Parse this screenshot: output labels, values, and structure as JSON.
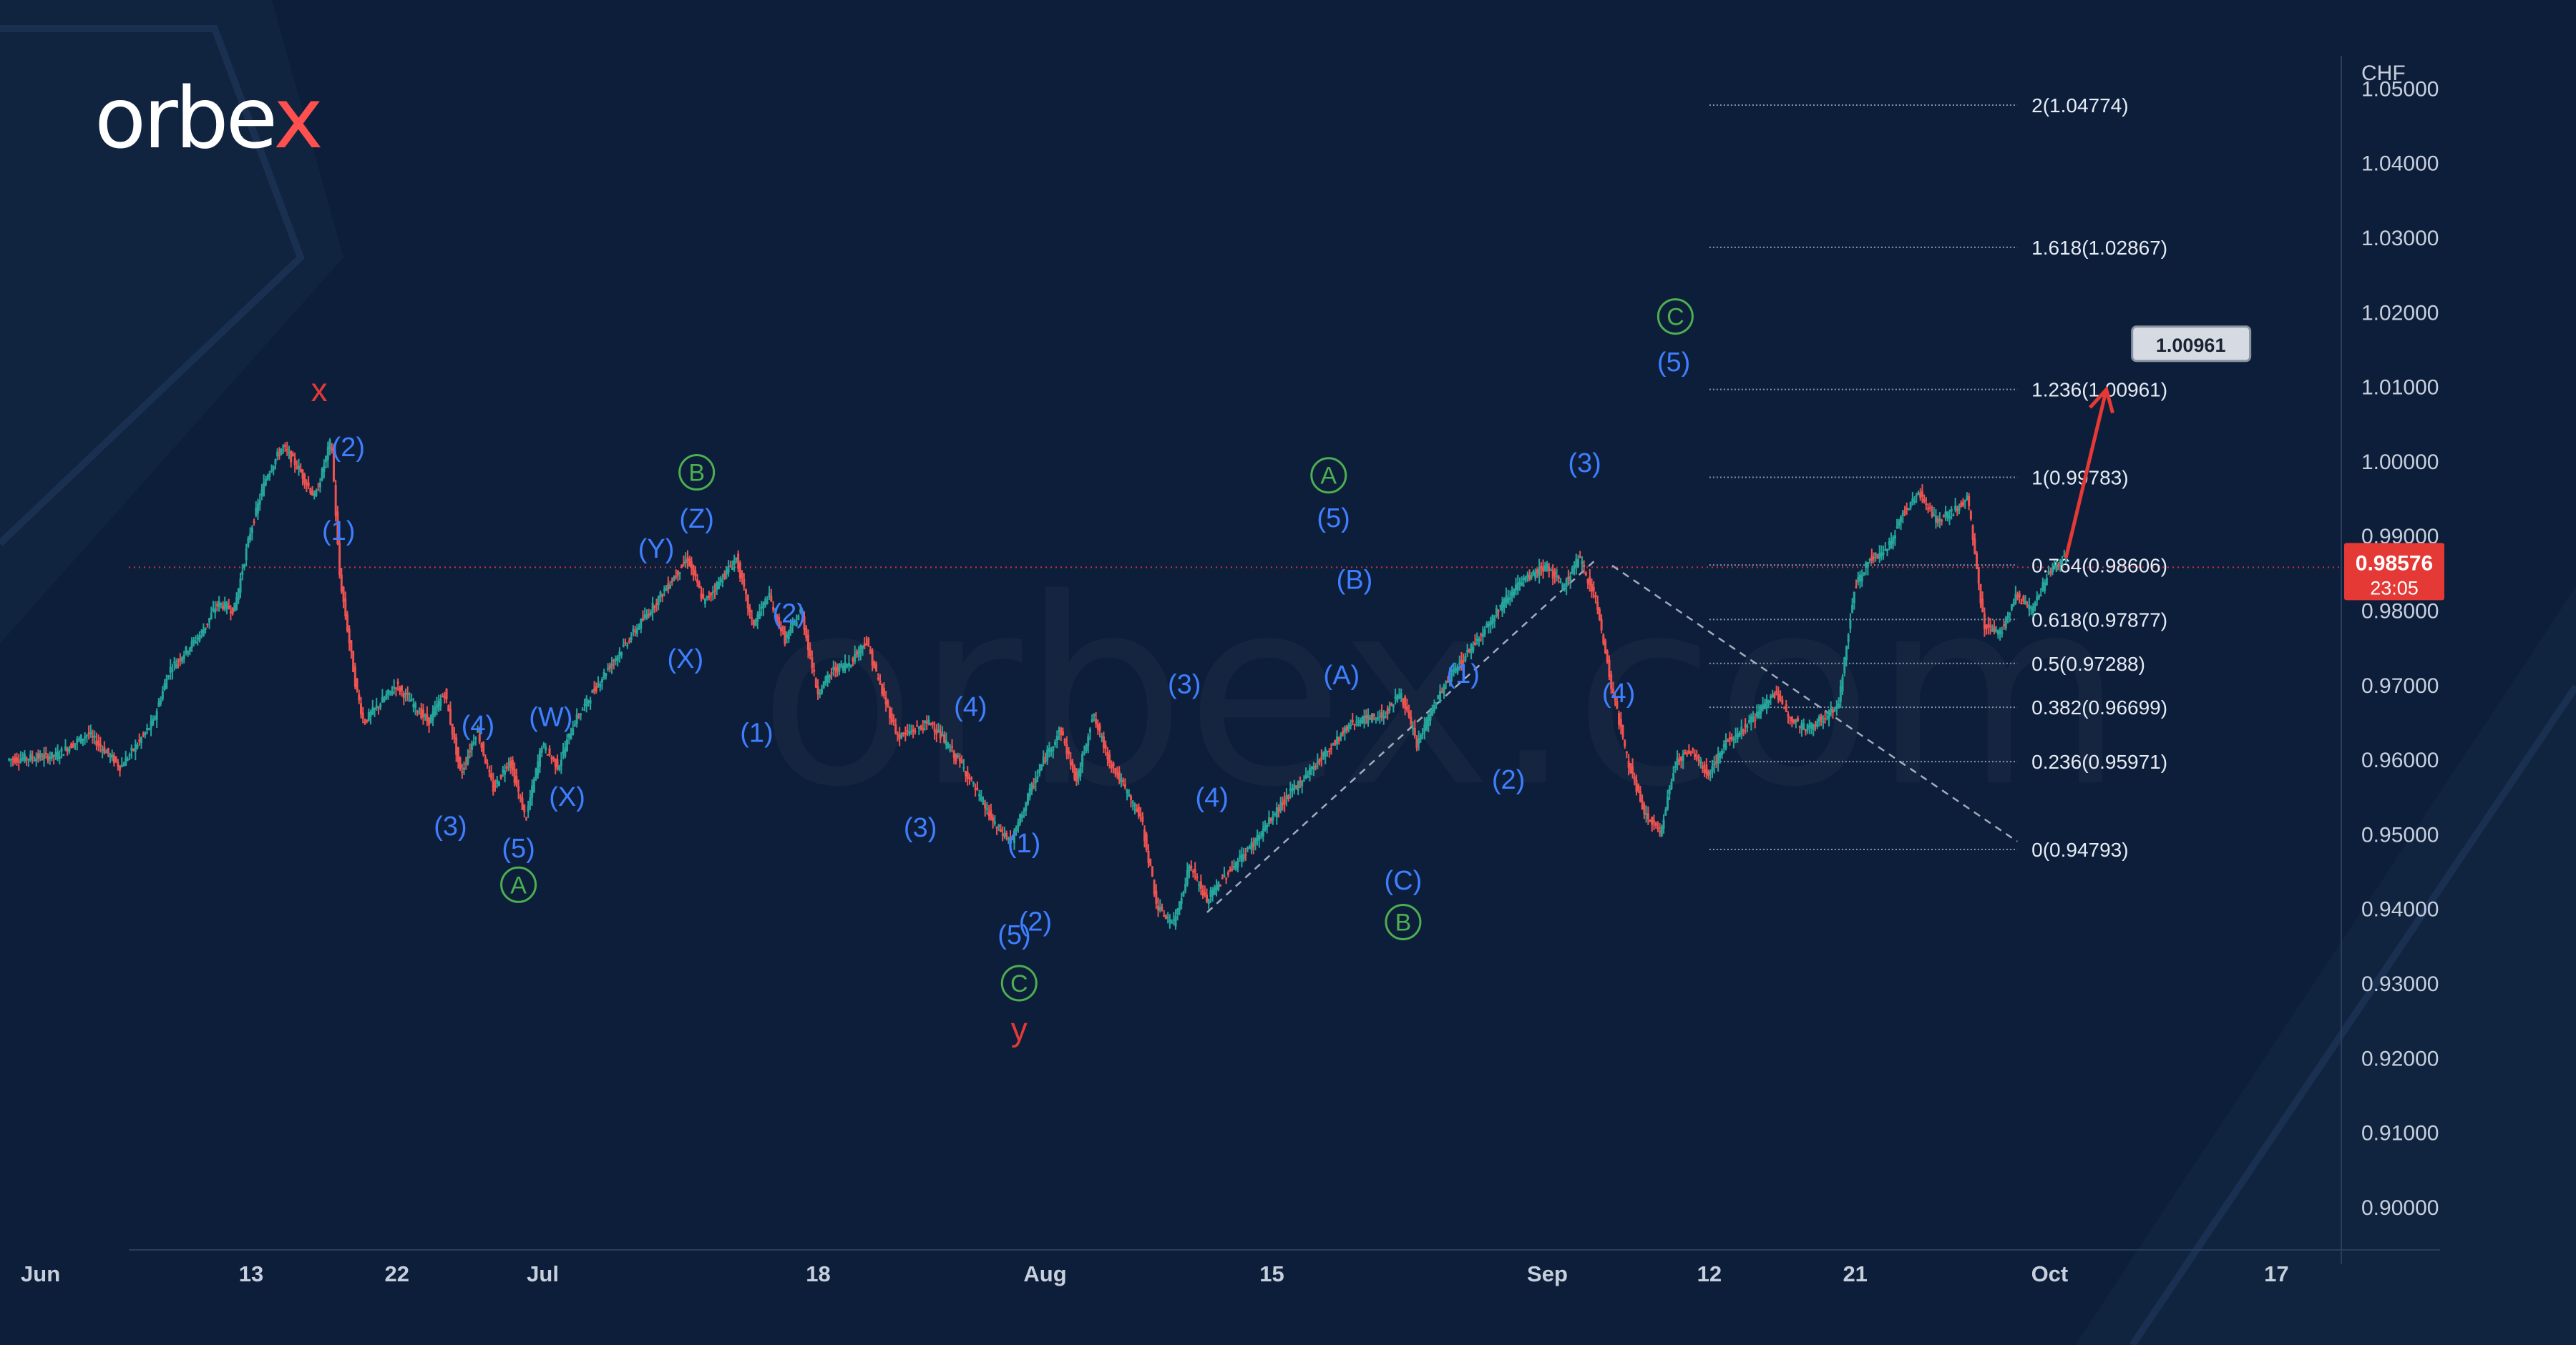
{
  "brand": {
    "logo_main": "orbe",
    "logo_x": "x",
    "watermark": "orbex.com"
  },
  "colors": {
    "background": "#0d1e3a",
    "wave_blue": "#3f7fff",
    "wave_green": "#4caf50",
    "wave_red": "#e53935",
    "candle_up": "#26a69a",
    "candle_down": "#ef5350",
    "fib_line": "#8896aa",
    "price_badge": "#e53935",
    "text": "#c8cfdc"
  },
  "chart_data": {
    "type": "candlestick",
    "symbol_currency": "CHF",
    "ylim": [
      0.895,
      1.058
    ],
    "y_ticks": [
      "1.05000",
      "1.04000",
      "1.03000",
      "1.02000",
      "1.01000",
      "1.00000",
      "0.99000",
      "0.98000",
      "0.97000",
      "0.96000",
      "0.95000",
      "0.94000",
      "0.93000",
      "0.92000",
      "0.91000",
      "0.90000"
    ],
    "x_ticks": [
      "Jun",
      "13",
      "22",
      "Jul",
      "18",
      "Aug",
      "15",
      "Sep",
      "12",
      "21",
      "Oct",
      "17"
    ],
    "x_tick_days": [
      0,
      13,
      22,
      31,
      48,
      62,
      76,
      93,
      103,
      112,
      124,
      138
    ],
    "x_range_days": [
      -2.5,
      142
    ],
    "current_price": "0.98576",
    "countdown": "23:05",
    "path": [
      [
        -2,
        0.96
      ],
      [
        1,
        0.9605
      ],
      [
        3,
        0.9635
      ],
      [
        5,
        0.959
      ],
      [
        7,
        0.965
      ],
      [
        8,
        0.972
      ],
      [
        10,
        0.977
      ],
      [
        11,
        0.981
      ],
      [
        12,
        0.98
      ],
      [
        13,
        0.9905
      ],
      [
        14,
        0.998
      ],
      [
        15,
        1.002
      ],
      [
        16,
        0.999
      ],
      [
        17,
        0.995
      ],
      [
        18,
        1.003
      ],
      [
        18.5,
        0.985
      ],
      [
        19.5,
        0.97
      ],
      [
        20,
        0.965
      ],
      [
        22,
        0.97
      ],
      [
        24,
        0.965
      ],
      [
        25,
        0.969
      ],
      [
        26,
        0.958
      ],
      [
        27,
        0.964
      ],
      [
        28,
        0.956
      ],
      [
        29,
        0.96
      ],
      [
        30,
        0.952
      ],
      [
        31,
        0.962
      ],
      [
        32,
        0.959
      ],
      [
        33,
        0.965
      ],
      [
        35,
        0.972
      ],
      [
        37,
        0.978
      ],
      [
        39,
        0.984
      ],
      [
        40,
        0.987
      ],
      [
        41,
        0.981
      ],
      [
        42,
        0.984
      ],
      [
        43,
        0.987
      ],
      [
        44,
        0.978
      ],
      [
        45,
        0.982
      ],
      [
        46,
        0.976
      ],
      [
        47,
        0.98
      ],
      [
        48,
        0.969
      ],
      [
        49,
        0.972
      ],
      [
        50,
        0.973
      ],
      [
        51,
        0.976
      ],
      [
        52,
        0.969
      ],
      [
        53,
        0.963
      ],
      [
        55,
        0.965
      ],
      [
        57,
        0.959
      ],
      [
        58,
        0.955
      ],
      [
        59,
        0.951
      ],
      [
        60,
        0.949
      ],
      [
        61,
        0.955
      ],
      [
        62,
        0.96
      ],
      [
        63,
        0.964
      ],
      [
        64,
        0.957
      ],
      [
        65,
        0.966
      ],
      [
        66,
        0.96
      ],
      [
        67,
        0.956
      ],
      [
        68,
        0.952
      ],
      [
        69,
        0.94
      ],
      [
        70,
        0.938
      ],
      [
        71,
        0.946
      ],
      [
        72,
        0.941
      ],
      [
        73,
        0.944
      ],
      [
        75,
        0.949
      ],
      [
        77,
        0.955
      ],
      [
        79,
        0.96
      ],
      [
        81,
        0.965
      ],
      [
        83,
        0.966
      ],
      [
        84,
        0.969
      ],
      [
        85,
        0.962
      ],
      [
        86,
        0.967
      ],
      [
        87,
        0.971
      ],
      [
        89,
        0.977
      ],
      [
        91,
        0.983
      ],
      [
        93,
        0.986
      ],
      [
        94,
        0.983
      ],
      [
        95,
        0.987
      ],
      [
        96,
        0.982
      ],
      [
        97,
        0.97
      ],
      [
        98,
        0.96
      ],
      [
        99,
        0.953
      ],
      [
        100,
        0.95
      ],
      [
        101,
        0.96
      ],
      [
        102,
        0.961
      ],
      [
        103,
        0.958
      ],
      [
        104,
        0.962
      ],
      [
        106,
        0.966
      ],
      [
        107,
        0.969
      ],
      [
        108,
        0.966
      ],
      [
        109,
        0.964
      ],
      [
        111,
        0.967
      ],
      [
        112,
        0.983
      ],
      [
        113,
        0.987
      ],
      [
        114,
        0.988
      ],
      [
        115,
        0.993
      ],
      [
        116,
        0.996
      ],
      [
        117,
        0.992
      ],
      [
        118,
        0.993
      ],
      [
        119,
        0.995
      ],
      [
        120,
        0.978
      ],
      [
        121,
        0.977
      ],
      [
        122,
        0.982
      ],
      [
        123,
        0.98
      ],
      [
        124,
        0.985
      ],
      [
        125,
        0.987
      ]
    ],
    "fib_levels": [
      {
        "label": "2(1.04774)",
        "value": 1.04774
      },
      {
        "label": "1.618(1.02867)",
        "value": 1.02867
      },
      {
        "label": "1.236(1.00961)",
        "value": 1.00961
      },
      {
        "label": "1(0.99783)",
        "value": 0.99783
      },
      {
        "label": "0.764(0.98606)",
        "value": 0.98606
      },
      {
        "label": "0.618(0.97877)",
        "value": 0.97877
      },
      {
        "label": "0.5(0.97288)",
        "value": 0.97288
      },
      {
        "label": "0.382(0.96699)",
        "value": 0.96699
      },
      {
        "label": "0.236(0.95971)",
        "value": 0.95971
      },
      {
        "label": "0(0.94793)",
        "value": 0.94793
      }
    ],
    "fib_x_days": [
      103,
      122
    ],
    "target": {
      "label": "1.00961",
      "from": [
        125,
        0.987
      ],
      "to": [
        127.5,
        1.0096
      ]
    },
    "dashed_lines": [
      {
        "from": [
          72,
          0.9395
        ],
        "to": [
          96,
          0.9868
        ]
      },
      {
        "from": [
          97,
          0.986
        ],
        "to": [
          122,
          0.949
        ]
      }
    ],
    "wave_labels": [
      {
        "text": "x",
        "day": 17.2,
        "price": 1.0094,
        "color": "red",
        "circle": false
      },
      {
        "text": "(2)",
        "day": 19.0,
        "price": 1.002,
        "color": "blue",
        "circle": false
      },
      {
        "text": "(1)",
        "day": 18.4,
        "price": 0.9908,
        "color": "blue",
        "circle": false
      },
      {
        "text": "(4)",
        "day": 27.0,
        "price": 0.9647,
        "color": "blue",
        "circle": false
      },
      {
        "text": "(3)",
        "day": 25.3,
        "price": 0.9512,
        "color": "blue",
        "circle": false
      },
      {
        "text": "(5)",
        "day": 29.5,
        "price": 0.9482,
        "color": "blue",
        "circle": false
      },
      {
        "text": "A",
        "day": 29.5,
        "price": 0.9432,
        "color": "green",
        "circle": true
      },
      {
        "text": "(W)",
        "day": 31.5,
        "price": 0.9658,
        "color": "blue",
        "circle": false
      },
      {
        "text": "(X)",
        "day": 32.5,
        "price": 0.9551,
        "color": "blue",
        "circle": false
      },
      {
        "text": "(Y)",
        "day": 38.0,
        "price": 0.9884,
        "color": "blue",
        "circle": false
      },
      {
        "text": "(Z)",
        "day": 40.5,
        "price": 0.9924,
        "color": "blue",
        "circle": false
      },
      {
        "text": "B",
        "day": 40.5,
        "price": 0.9985,
        "color": "green",
        "circle": true
      },
      {
        "text": "(X)",
        "day": 39.8,
        "price": 0.9736,
        "color": "blue",
        "circle": false
      },
      {
        "text": "(2)",
        "day": 46.2,
        "price": 0.9797,
        "color": "blue",
        "circle": false
      },
      {
        "text": "(1)",
        "day": 44.2,
        "price": 0.9637,
        "color": "blue",
        "circle": false
      },
      {
        "text": "(3)",
        "day": 54.3,
        "price": 0.951,
        "color": "blue",
        "circle": false
      },
      {
        "text": "(4)",
        "day": 57.4,
        "price": 0.9672,
        "color": "blue",
        "circle": false
      },
      {
        "text": "(1)",
        "day": 60.7,
        "price": 0.9489,
        "color": "blue",
        "circle": false
      },
      {
        "text": "(2)",
        "day": 61.4,
        "price": 0.9384,
        "color": "blue",
        "circle": false
      },
      {
        "text": "(5)",
        "day": 60.1,
        "price": 0.9366,
        "color": "blue",
        "circle": false
      },
      {
        "text": "C",
        "day": 60.4,
        "price": 0.93,
        "color": "green",
        "circle": true
      },
      {
        "text": "y",
        "day": 60.4,
        "price": 0.9236,
        "color": "red",
        "circle": false
      },
      {
        "text": "(3)",
        "day": 70.6,
        "price": 0.9702,
        "color": "blue",
        "circle": false
      },
      {
        "text": "(4)",
        "day": 72.3,
        "price": 0.955,
        "color": "blue",
        "circle": false
      },
      {
        "text": "A",
        "day": 79.5,
        "price": 0.9981,
        "color": "green",
        "circle": true
      },
      {
        "text": "(5)",
        "day": 79.8,
        "price": 0.9925,
        "color": "blue",
        "circle": false
      },
      {
        "text": "(B)",
        "day": 81.1,
        "price": 0.9842,
        "color": "blue",
        "circle": false
      },
      {
        "text": "(A)",
        "day": 80.3,
        "price": 0.9714,
        "color": "blue",
        "circle": false
      },
      {
        "text": "(C)",
        "day": 84.1,
        "price": 0.9439,
        "color": "blue",
        "circle": false
      },
      {
        "text": "B",
        "day": 84.1,
        "price": 0.9382,
        "color": "green",
        "circle": true
      },
      {
        "text": "(1)",
        "day": 87.8,
        "price": 0.9716,
        "color": "blue",
        "circle": false
      },
      {
        "text": "(2)",
        "day": 90.6,
        "price": 0.9574,
        "color": "blue",
        "circle": false
      },
      {
        "text": "(3)",
        "day": 95.3,
        "price": 0.9999,
        "color": "blue",
        "circle": false
      },
      {
        "text": "(4)",
        "day": 97.4,
        "price": 0.969,
        "color": "blue",
        "circle": false
      },
      {
        "text": "(5)",
        "day": 100.8,
        "price": 1.0134,
        "color": "blue",
        "circle": false
      },
      {
        "text": "C",
        "day": 100.9,
        "price": 1.0194,
        "color": "green",
        "circle": true
      }
    ]
  }
}
